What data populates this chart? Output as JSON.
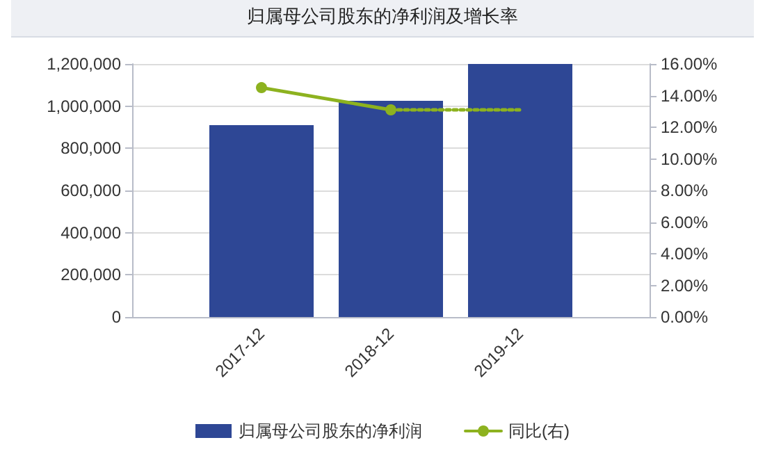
{
  "chart_data": {
    "type": "bar",
    "title": "归属母公司股东的净利润及增长率",
    "categories": [
      null,
      "2017-12",
      "2018-12",
      "2019-12",
      null
    ],
    "series": [
      {
        "name": "归属母公司股东的净利润",
        "color": "#2e4795",
        "values": [
          null,
          910000,
          1025000,
          1200000,
          null
        ]
      },
      {
        "name": "同比(右)",
        "type": "line",
        "axis": "y2",
        "color": "#8db21f",
        "marker": "circle",
        "line_style": "solid",
        "values": [
          null,
          14.5,
          13.1,
          null,
          null
        ]
      },
      {
        "type": "line",
        "axis": "y2",
        "color": "#8db21f",
        "marker": "none",
        "line_style": "dotted",
        "values": [
          null,
          null,
          13.1,
          13.1,
          null
        ]
      }
    ],
    "ylim": [
      0,
      1200000
    ],
    "yticks": [
      {
        "value": 0,
        "label": "0"
      },
      {
        "value": 200000,
        "label": "200,000"
      },
      {
        "value": 400000,
        "label": "400,000"
      },
      {
        "value": 600000,
        "label": "600,000"
      },
      {
        "value": 800000,
        "label": "800,000"
      },
      {
        "value": 1000000,
        "label": "1,000,000"
      },
      {
        "value": 1200000,
        "label": "1,200,000"
      }
    ],
    "y2lim": [
      0,
      16
    ],
    "y2ticks": [
      {
        "value": 0,
        "label": "0.00%"
      },
      {
        "value": 2,
        "label": "2.00%"
      },
      {
        "value": 4,
        "label": "4.00%"
      },
      {
        "value": 6,
        "label": "6.00%"
      },
      {
        "value": 8,
        "label": "8.00%"
      },
      {
        "value": 10,
        "label": "10.00%"
      },
      {
        "value": 12,
        "label": "12.00%"
      },
      {
        "value": 14,
        "label": "14.00%"
      },
      {
        "value": 16,
        "label": "16.00%"
      }
    ],
    "grid": "y",
    "legend": "bottom"
  }
}
